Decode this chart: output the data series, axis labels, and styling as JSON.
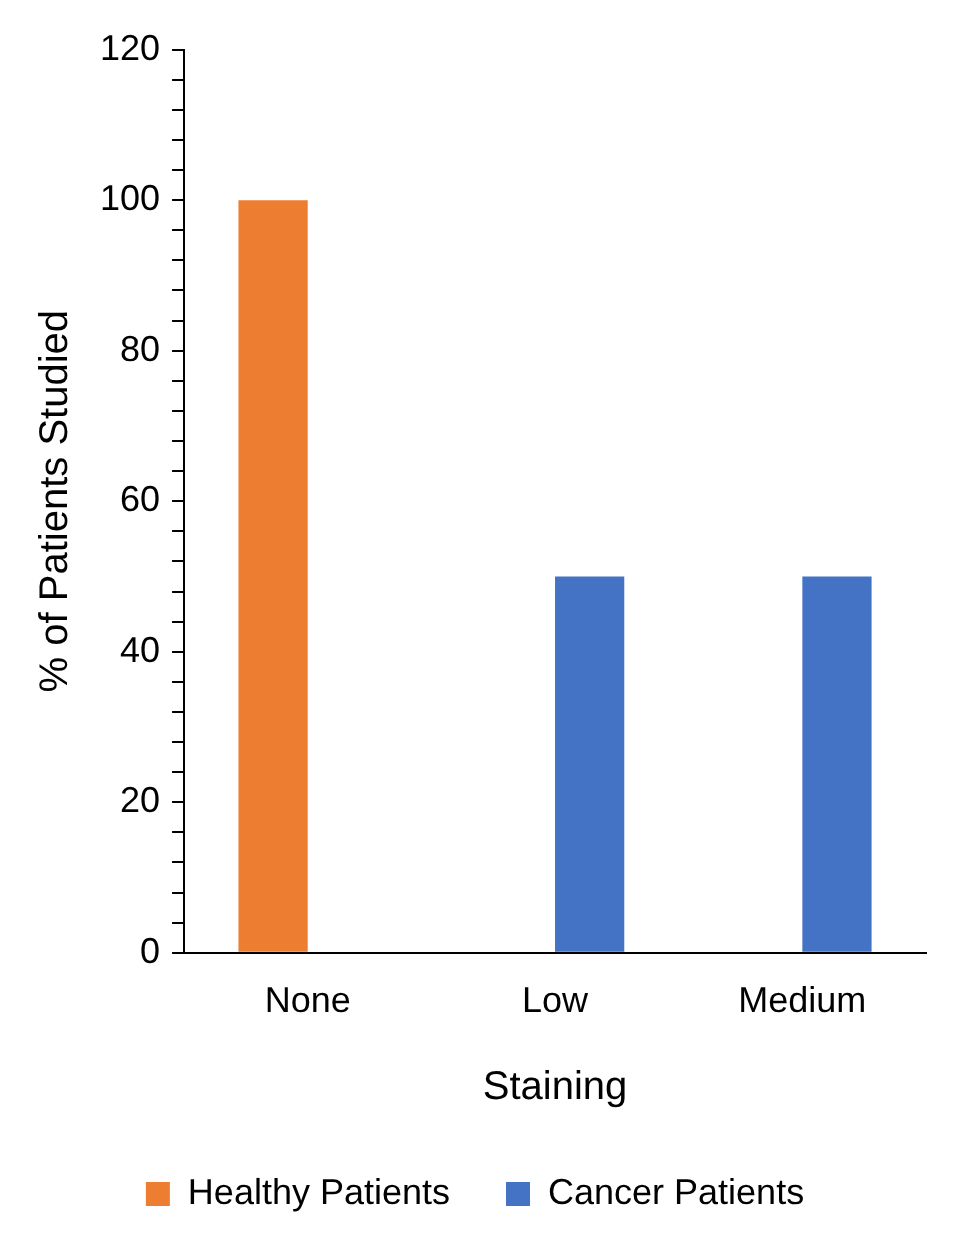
{
  "chart_data": {
    "type": "bar",
    "xlabel": "Staining",
    "ylabel": "% of Patients Studied",
    "categories": [
      "None",
      "Low",
      "Medium"
    ],
    "series": [
      {
        "name": "Healthy Patients",
        "color": "#ed7d31",
        "values": [
          100,
          0,
          0
        ]
      },
      {
        "name": "Cancer Patients",
        "color": "#4472c4",
        "values": [
          0,
          50,
          50
        ]
      }
    ],
    "ylim": [
      0,
      120
    ],
    "yticks": [
      0,
      {
        "value": 4,
        "label": null
      },
      {
        "value": 8,
        "label": null
      },
      {
        "value": 12,
        "label": null
      },
      {
        "value": 16,
        "label": null
      },
      20,
      {
        "value": 24,
        "label": null
      },
      {
        "value": 28,
        "label": null
      },
      {
        "value": 32,
        "label": null
      },
      {
        "value": 36,
        "label": null
      },
      40,
      {
        "value": 44,
        "label": null
      },
      {
        "value": 48,
        "label": null
      },
      {
        "value": 52,
        "label": null
      },
      {
        "value": 56,
        "label": null
      },
      60,
      {
        "value": 64,
        "label": null
      },
      {
        "value": 68,
        "label": null
      },
      {
        "value": 72,
        "label": null
      },
      {
        "value": 76,
        "label": null
      },
      80,
      {
        "value": 84,
        "label": null
      },
      {
        "value": 88,
        "label": null
      },
      {
        "value": 92,
        "label": null
      },
      {
        "value": 96,
        "label": null
      },
      100,
      {
        "value": 104,
        "label": null
      },
      {
        "value": 108,
        "label": null
      },
      {
        "value": 112,
        "label": null
      },
      {
        "value": 116,
        "label": null
      },
      120
    ],
    "grid": false,
    "legend": "bottom"
  }
}
